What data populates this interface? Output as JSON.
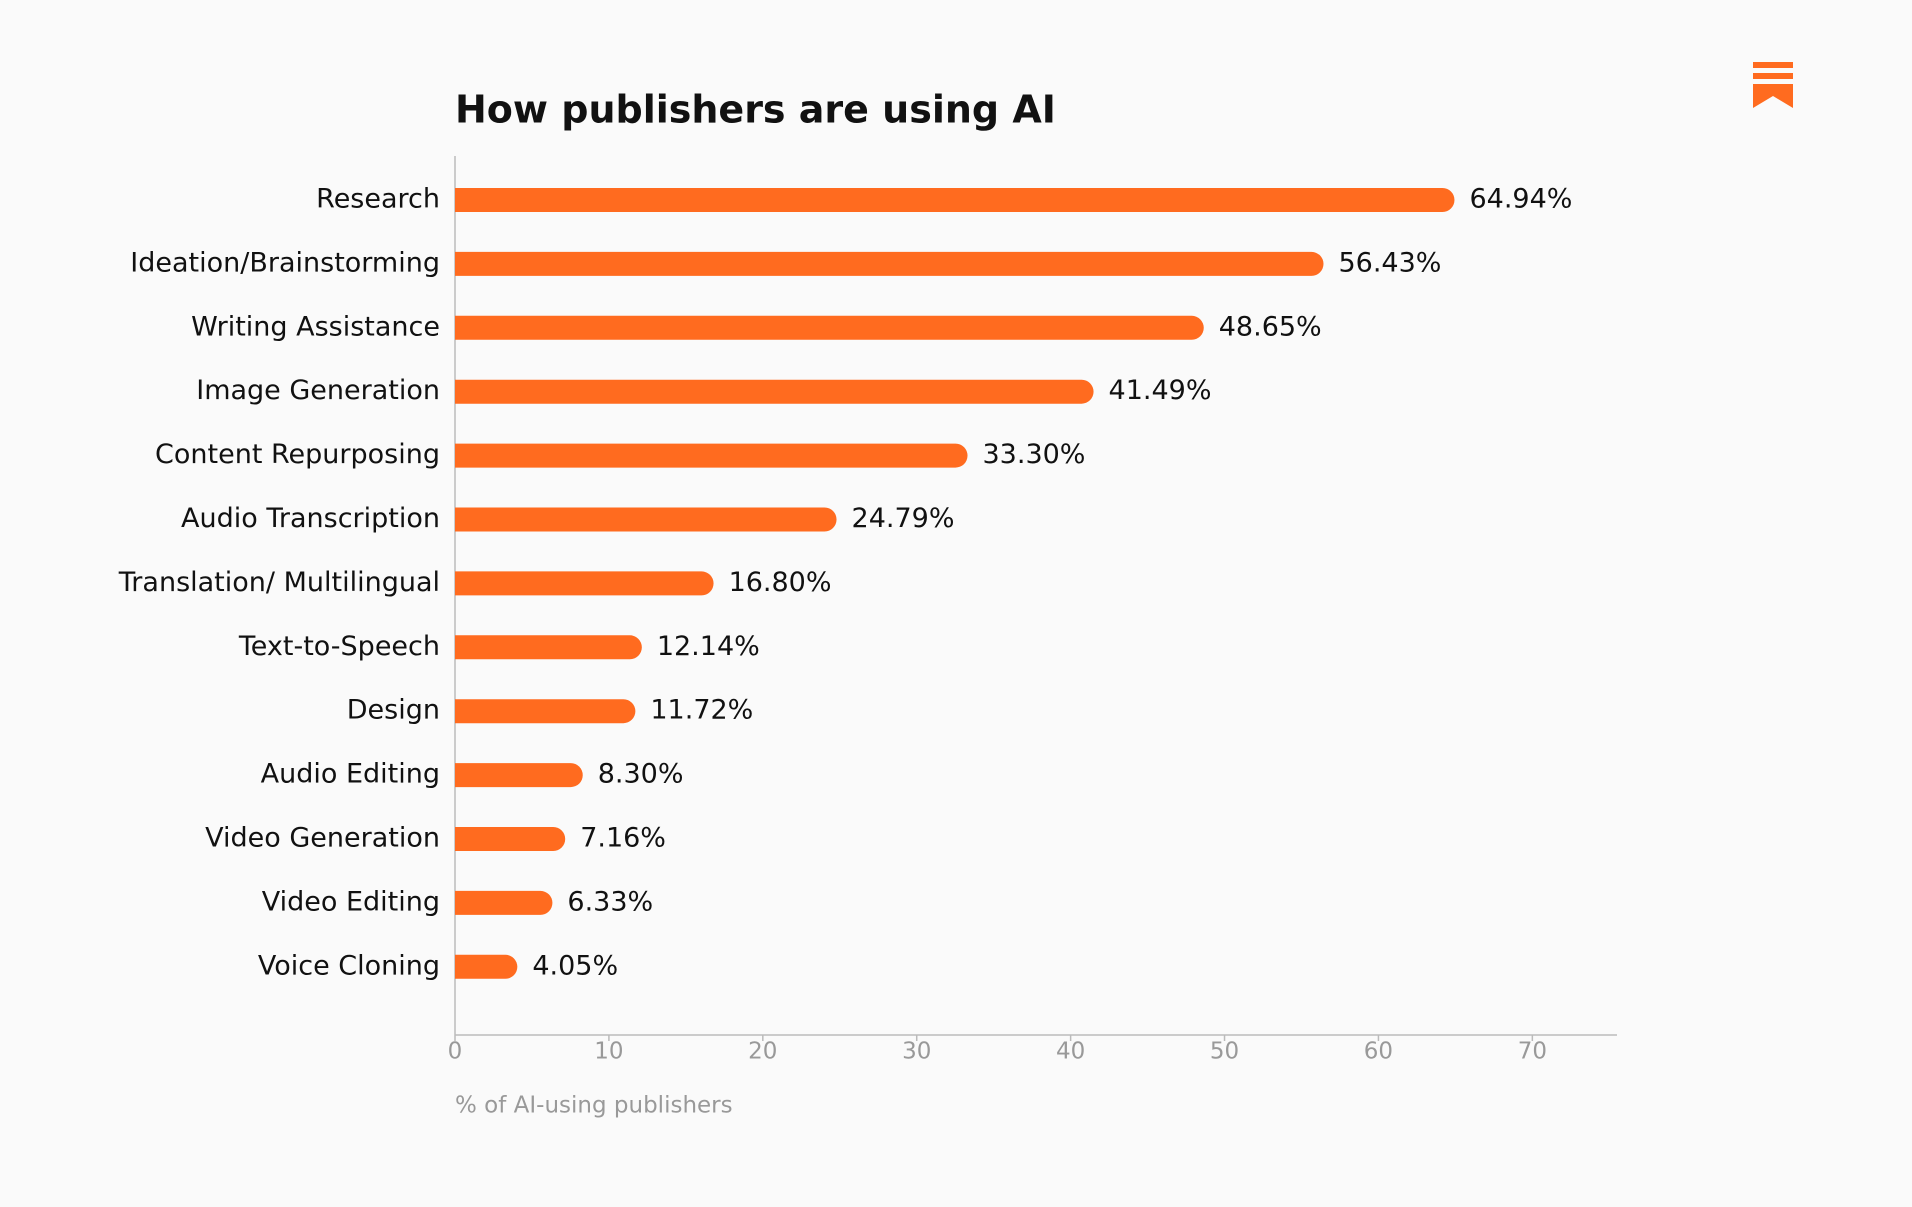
{
  "chart_data": {
    "type": "bar",
    "orientation": "horizontal",
    "title": "How publishers are using AI",
    "categories": [
      "Research",
      "Ideation/Brainstorming",
      "Writing Assistance",
      "Image Generation",
      "Content Repurposing",
      "Audio Transcription",
      "Translation/ Multilingual",
      "Text-to-Speech",
      "Design",
      "Audio Editing",
      "Video Generation",
      "Video Editing",
      "Voice Cloning"
    ],
    "values": [
      64.94,
      56.43,
      48.65,
      41.49,
      33.3,
      24.79,
      16.8,
      12.14,
      11.72,
      8.3,
      7.16,
      6.33,
      4.05
    ],
    "value_labels": [
      "64.94%",
      "56.43%",
      "48.65%",
      "41.49%",
      "33.30%",
      "24.79%",
      "16.80%",
      "12.14%",
      "11.72%",
      "8.30%",
      "7.16%",
      "6.33%",
      "4.05%"
    ],
    "color": "#ff6b1f",
    "xlim": [
      0,
      75.5
    ],
    "xticks": [
      0,
      10,
      20,
      30,
      40,
      50,
      60,
      70
    ],
    "x_label": "% of AI-using publishers",
    "grid": false
  }
}
